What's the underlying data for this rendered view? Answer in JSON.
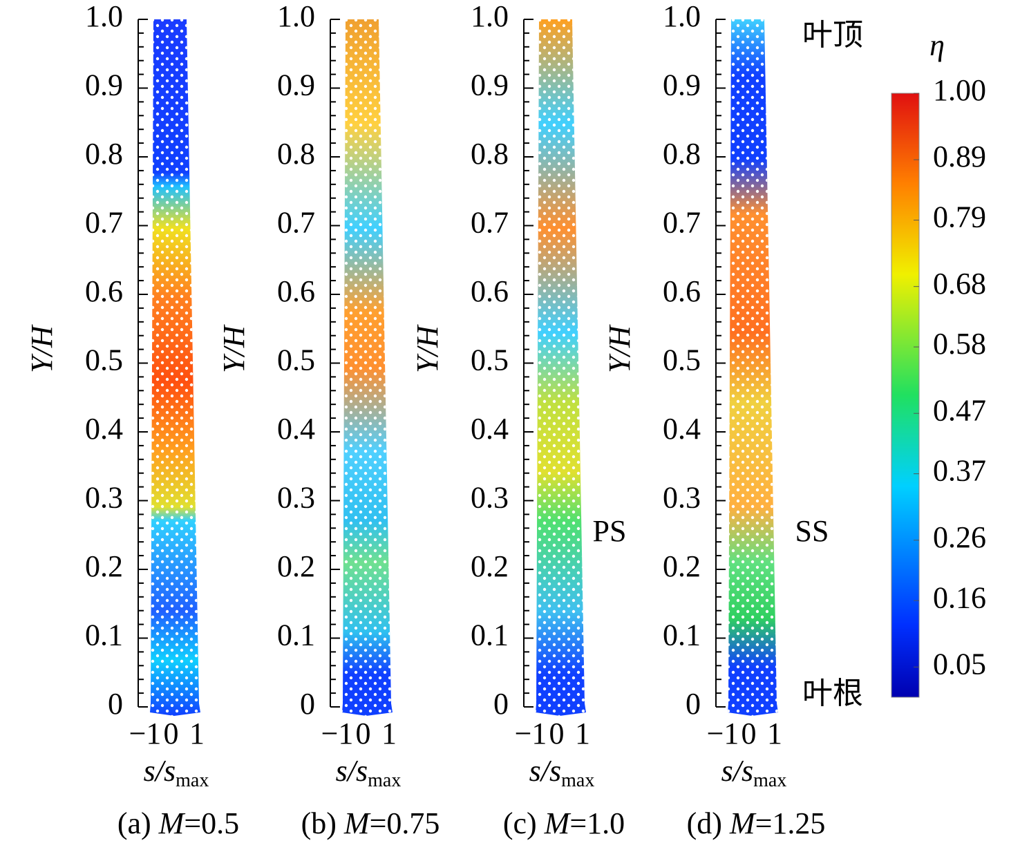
{
  "chart_data": [
    {
      "type": "contour",
      "ylabel": "Y/H",
      "xlabel": "s/s",
      "xlabel_sub": "max",
      "caption_label": "(a)",
      "caption_var": "M",
      "caption_value": "=0.5",
      "ylim": [
        0,
        1
      ],
      "xlim": [
        -1,
        1
      ],
      "yticks": [
        0,
        0.1,
        0.2,
        0.3,
        0.4,
        0.5,
        0.6,
        0.7,
        0.8,
        0.9,
        {
          "value": 1,
          "label": "1.0"
        }
      ],
      "xticks": [
        {
          "value": -1,
          "label": "−1"
        },
        0,
        1
      ]
    },
    {
      "type": "contour",
      "ylabel": "Y/H",
      "xlabel": "s/s",
      "xlabel_sub": "max",
      "caption_label": "(b)",
      "caption_var": "M",
      "caption_value": "=0.75",
      "ylim": [
        0,
        1
      ],
      "xlim": [
        -1,
        1
      ],
      "yticks": [
        0,
        0.1,
        0.2,
        0.3,
        0.4,
        0.5,
        0.6,
        0.7,
        0.8,
        0.9,
        {
          "value": 1,
          "label": "1.0"
        }
      ],
      "xticks": [
        {
          "value": -1,
          "label": "−1"
        },
        0,
        1
      ]
    },
    {
      "type": "contour",
      "ylabel": "Y/H",
      "xlabel": "s/s",
      "xlabel_sub": "max",
      "caption_label": "(c)",
      "caption_var": "M",
      "caption_value": "=1.0",
      "ylim": [
        0,
        1
      ],
      "xlim": [
        -1,
        1
      ],
      "yticks": [
        0,
        0.1,
        0.2,
        0.3,
        0.4,
        0.5,
        0.6,
        0.7,
        0.8,
        0.9,
        {
          "value": 1,
          "label": "1.0"
        }
      ],
      "xticks": [
        {
          "value": -1,
          "label": "−1"
        },
        0,
        1
      ]
    },
    {
      "type": "contour",
      "ylabel": "Y/H",
      "xlabel": "s/s",
      "xlabel_sub": "max",
      "caption_label": "(d)",
      "caption_var": "M",
      "caption_value": "=1.25",
      "ylim": [
        0,
        1
      ],
      "xlim": [
        -1,
        1
      ],
      "yticks": [
        0,
        0.1,
        0.2,
        0.3,
        0.4,
        0.5,
        0.6,
        0.7,
        0.8,
        0.9,
        {
          "value": 1,
          "label": "1.0"
        }
      ],
      "xticks": [
        {
          "value": -1,
          "label": "−1"
        },
        0,
        1
      ]
    }
  ],
  "colorbar": {
    "label": "η",
    "lim": [
      0,
      1
    ],
    "ticks": [
      {
        "value": 1,
        "label": "1.00"
      },
      0.89,
      0.79,
      0.68,
      0.58,
      0.47,
      0.37,
      0.26,
      0.16,
      0.05
    ]
  },
  "annotations": {
    "tip": "叶顶",
    "root": "叶根",
    "ps": "PS",
    "ss": "SS"
  }
}
